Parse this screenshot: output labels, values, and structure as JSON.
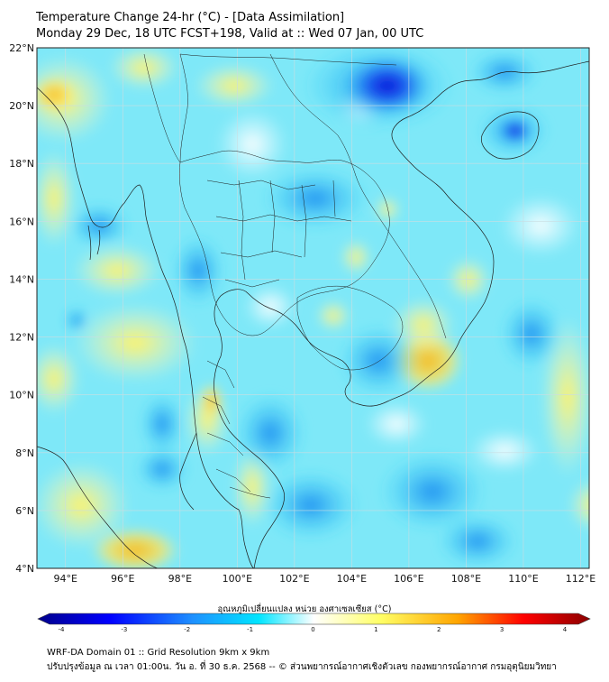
{
  "header": {
    "title": "Temperature Change 24-hr (°C) - [Data Assimilation]",
    "subtitle": "Monday 29 Dec, 18 UTC FCST+198, Valid at :: Wed 07 Jan, 00 UTC"
  },
  "map": {
    "lat_ticks": [
      "22°N",
      "20°N",
      "18°N",
      "16°N",
      "14°N",
      "12°N",
      "10°N",
      "8°N",
      "6°N",
      "4°N"
    ],
    "lon_ticks": [
      "94°E",
      "96°E",
      "98°E",
      "100°E",
      "102°E",
      "104°E",
      "106°E",
      "108°E",
      "110°E",
      "112°E"
    ],
    "lat_range": [
      4,
      22
    ],
    "lon_range": [
      93,
      112.3
    ]
  },
  "colorbar": {
    "label": "อุณหภูมิเปลี่ยนแปลง หน่วย องศาเซลเซียส (°C)",
    "ticks": [
      "-4",
      "-3",
      "-2",
      "-1",
      "0",
      "1",
      "2",
      "3",
      "4"
    ],
    "range": [
      -4,
      4
    ],
    "colors": [
      "#00008b",
      "#0000ff",
      "#1e90ff",
      "#00e5ff",
      "#ffffff",
      "#ffff66",
      "#ffa500",
      "#ff0000",
      "#8b0000"
    ]
  },
  "footer": {
    "line1": "WRF-DA Domain 01 :: Grid Resolution 9km x 9km",
    "line2": "ปรับปรุงข้อมูล ณ เวลา 01:00น. วัน อ. ที่ 30 ธ.ค. 2568 -- © ส่วนพยากรณ์อากาศเชิงตัวเลข กองพยากรณ์อากาศ กรมอุตุนิยมวิทยา"
  }
}
